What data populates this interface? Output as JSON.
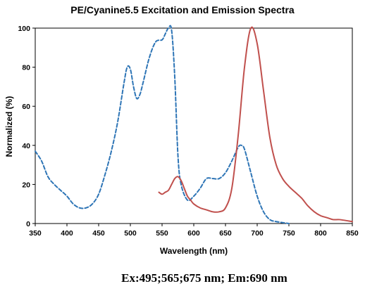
{
  "chart_data": {
    "type": "line",
    "title": "PE/Cyanine5.5 Excitation and Emission Spectra",
    "xlabel": "Wavelength (nm)",
    "ylabel": "Normalized (%)",
    "xlim": [
      350,
      850
    ],
    "ylim": [
      0,
      100
    ],
    "xticks": [
      350,
      400,
      450,
      500,
      550,
      600,
      650,
      700,
      750,
      800,
      850
    ],
    "yticks": [
      0,
      20,
      40,
      60,
      80,
      100
    ],
    "grid": false,
    "legend": "none",
    "caption": "Ex:495;565;675 nm; Em:690 nm",
    "series": [
      {
        "color": "#2e75b6",
        "style": "dashed",
        "points": [
          [
            350,
            37
          ],
          [
            360,
            32
          ],
          [
            370,
            24
          ],
          [
            380,
            20
          ],
          [
            390,
            17
          ],
          [
            400,
            14
          ],
          [
            410,
            10
          ],
          [
            420,
            8
          ],
          [
            430,
            8
          ],
          [
            440,
            10
          ],
          [
            450,
            15
          ],
          [
            460,
            25
          ],
          [
            470,
            37
          ],
          [
            480,
            52
          ],
          [
            490,
            72
          ],
          [
            495,
            80
          ],
          [
            500,
            79
          ],
          [
            505,
            70
          ],
          [
            510,
            64
          ],
          [
            515,
            66
          ],
          [
            520,
            72
          ],
          [
            530,
            85
          ],
          [
            540,
            93
          ],
          [
            550,
            94
          ],
          [
            555,
            97
          ],
          [
            560,
            100
          ],
          [
            565,
            99
          ],
          [
            570,
            75
          ],
          [
            575,
            35
          ],
          [
            580,
            20
          ],
          [
            590,
            12
          ],
          [
            600,
            14
          ],
          [
            610,
            18
          ],
          [
            620,
            23
          ],
          [
            630,
            23
          ],
          [
            640,
            23
          ],
          [
            650,
            26
          ],
          [
            660,
            32
          ],
          [
            670,
            39
          ],
          [
            675,
            40
          ],
          [
            680,
            38
          ],
          [
            690,
            26
          ],
          [
            700,
            14
          ],
          [
            710,
            6
          ],
          [
            720,
            2
          ],
          [
            730,
            1
          ],
          [
            750,
            0
          ]
        ]
      },
      {
        "color": "#c0504d",
        "style": "solid",
        "points": [
          [
            545,
            16
          ],
          [
            550,
            15
          ],
          [
            555,
            16
          ],
          [
            560,
            17
          ],
          [
            565,
            20
          ],
          [
            570,
            23
          ],
          [
            575,
            24
          ],
          [
            580,
            22
          ],
          [
            585,
            18
          ],
          [
            590,
            14
          ],
          [
            595,
            12
          ],
          [
            600,
            10
          ],
          [
            610,
            8
          ],
          [
            620,
            7
          ],
          [
            630,
            6
          ],
          [
            640,
            6
          ],
          [
            650,
            8
          ],
          [
            660,
            18
          ],
          [
            670,
            45
          ],
          [
            680,
            80
          ],
          [
            690,
            100
          ],
          [
            700,
            92
          ],
          [
            710,
            68
          ],
          [
            720,
            44
          ],
          [
            730,
            30
          ],
          [
            740,
            23
          ],
          [
            750,
            19
          ],
          [
            760,
            16
          ],
          [
            770,
            13
          ],
          [
            780,
            9
          ],
          [
            790,
            6
          ],
          [
            800,
            4
          ],
          [
            810,
            3
          ],
          [
            820,
            2
          ],
          [
            830,
            2
          ],
          [
            850,
            1
          ]
        ]
      }
    ]
  }
}
